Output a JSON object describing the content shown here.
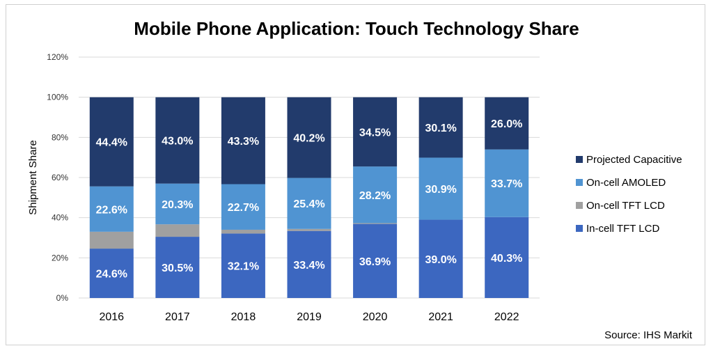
{
  "chart_data": {
    "type": "bar",
    "stacked": true,
    "title": "Mobile Phone Application: Touch Technology Share",
    "xlabel": "",
    "ylabel": "Shipment Share",
    "ylim": [
      0,
      120
    ],
    "yticks": [
      "0%",
      "20%",
      "40%",
      "60%",
      "80%",
      "100%",
      "120%"
    ],
    "grid": true,
    "legend_position": "right",
    "categories": [
      "2016",
      "2017",
      "2018",
      "2019",
      "2020",
      "2021",
      "2022"
    ],
    "series": [
      {
        "name": "In-cell TFT LCD",
        "color": "#3c67c0",
        "values": [
          24.6,
          30.5,
          32.1,
          33.4,
          36.9,
          39.0,
          40.3
        ],
        "labels": [
          "24.6%",
          "30.5%",
          "32.1%",
          "33.4%",
          "36.9%",
          "39.0%",
          "40.3%"
        ]
      },
      {
        "name": "On-cell TFT LCD",
        "color": "#a0a0a0",
        "values": [
          8.4,
          6.2,
          1.9,
          1.0,
          0.4,
          0.0,
          0.0
        ],
        "labels": []
      },
      {
        "name": "On-cell AMOLED",
        "color": "#5094d2",
        "values": [
          22.6,
          20.3,
          22.7,
          25.4,
          28.2,
          30.9,
          33.7
        ],
        "labels": [
          "22.6%",
          "20.3%",
          "22.7%",
          "25.4%",
          "28.2%",
          "30.9%",
          "33.7%"
        ]
      },
      {
        "name": "Projected Capacitive",
        "color": "#223b6c",
        "values": [
          44.4,
          43.0,
          43.3,
          40.2,
          34.5,
          30.1,
          26.0
        ],
        "labels": [
          "44.4%",
          "43.0%",
          "43.3%",
          "40.2%",
          "34.5%",
          "30.1%",
          "26.0%"
        ]
      }
    ],
    "legend_order": [
      "Projected Capacitive",
      "On-cell AMOLED",
      "On-cell TFT LCD",
      "In-cell TFT LCD"
    ],
    "source": "Source: IHS Markit"
  }
}
